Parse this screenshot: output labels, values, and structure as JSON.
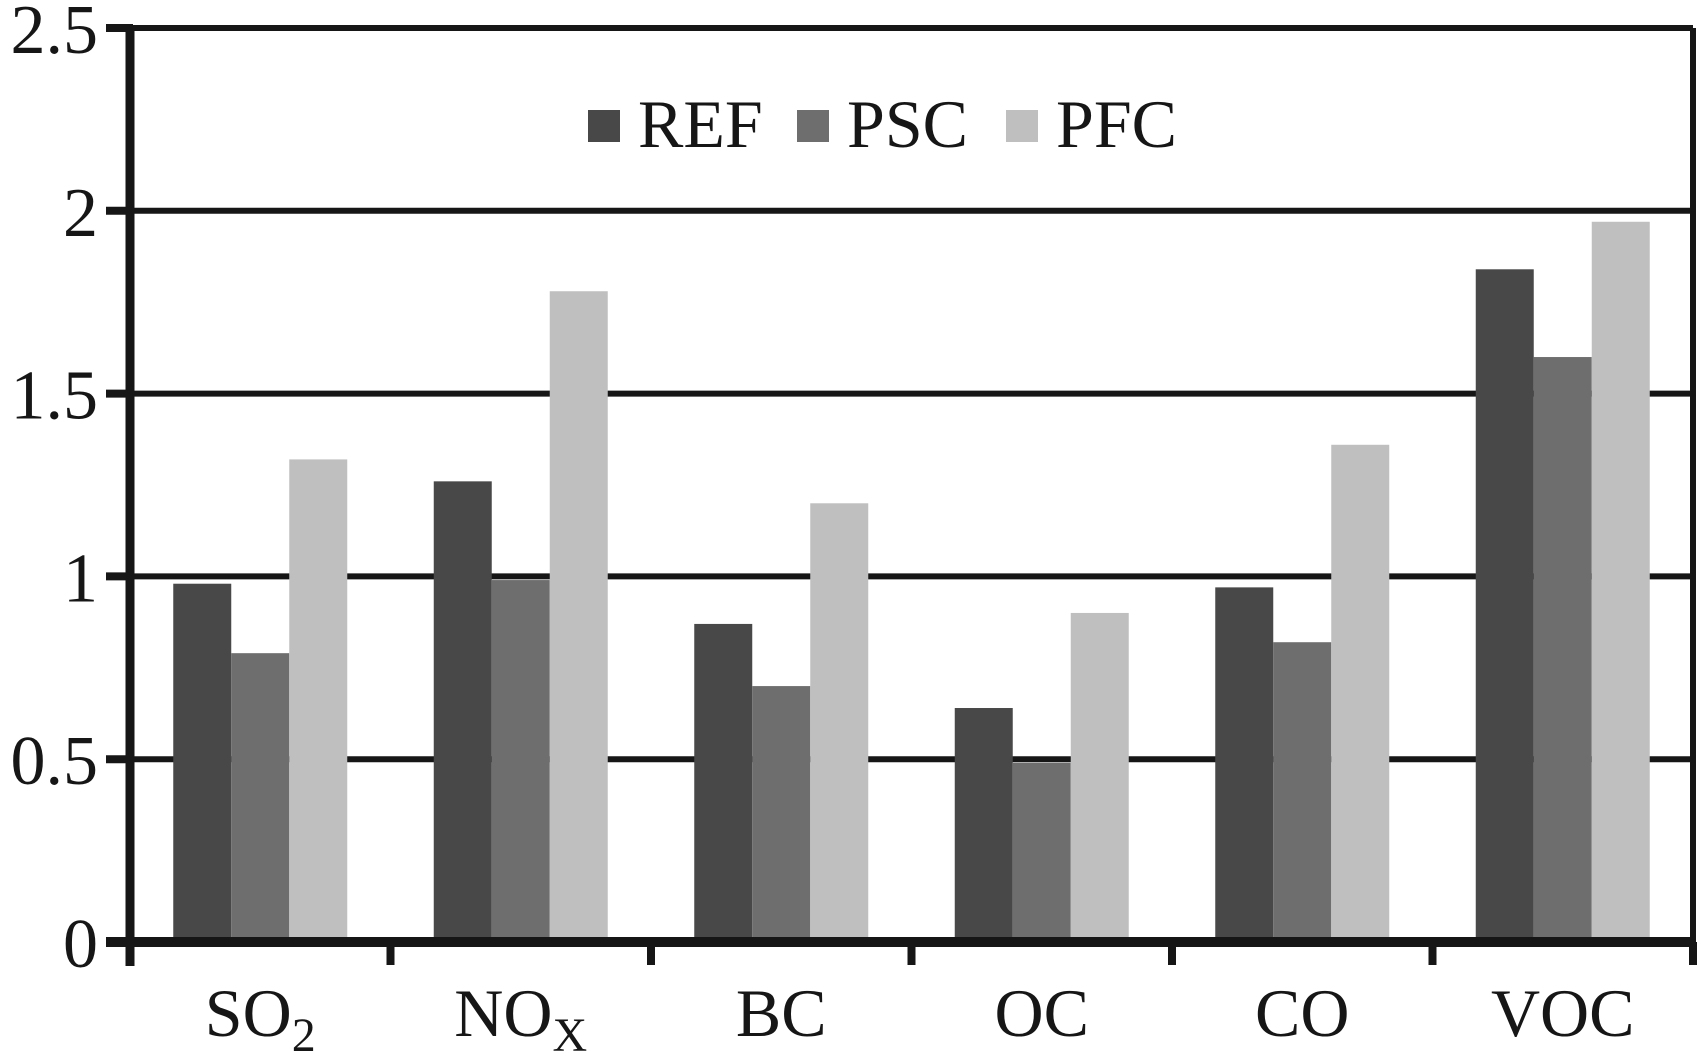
{
  "chart_data": {
    "type": "bar",
    "title": "",
    "xlabel": "",
    "ylabel": "",
    "categories": [
      "SO2",
      "NOx",
      "BC",
      "OC",
      "CO",
      "VOC"
    ],
    "category_rich": [
      {
        "base": "SO",
        "sub": "2"
      },
      {
        "base": "NO",
        "sub": "X"
      },
      {
        "base": "BC",
        "sub": ""
      },
      {
        "base": "OC",
        "sub": ""
      },
      {
        "base": "CO",
        "sub": ""
      },
      {
        "base": "VOC",
        "sub": ""
      }
    ],
    "series": [
      {
        "name": "REF",
        "color": "#484848",
        "values": [
          0.98,
          1.26,
          0.87,
          0.64,
          0.97,
          1.84
        ]
      },
      {
        "name": "PSC",
        "color": "#6e6e6e",
        "values": [
          0.79,
          0.99,
          0.7,
          0.49,
          0.82,
          1.6
        ]
      },
      {
        "name": "PFC",
        "color": "#bfbfbf",
        "values": [
          1.32,
          1.78,
          1.2,
          0.9,
          1.36,
          1.97
        ]
      }
    ],
    "ylim": [
      0,
      2.5
    ],
    "ytick_step": 0.5,
    "ytick_labels": [
      "0",
      "0.5",
      "1",
      "1.5",
      "2",
      "2.5"
    ],
    "grid": true,
    "legend_position": "top-center",
    "axis_color": "#161616",
    "background": "#ffffff"
  }
}
